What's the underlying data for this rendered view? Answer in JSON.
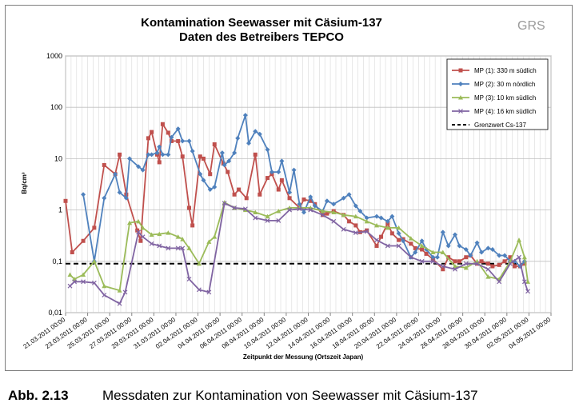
{
  "caption": {
    "number": "Abb. 2.13",
    "text": "Messdaten zur Kontamination von Seewasser mit Cäsium-137"
  },
  "logo": "GRS",
  "chart_data": {
    "type": "line",
    "title": "Kontamination Seewasser mit Cäsium-137",
    "subtitle": "Daten des Betreibers TEPCO",
    "xlabel": "Zeitpunkt der Messung (Ortszeit Japan)",
    "ylabel": "Bq/cm³",
    "yscale": "log",
    "ylim": [
      0.01,
      1000
    ],
    "yticks": [
      {
        "value": 1000,
        "label": "1000"
      },
      {
        "value": 100,
        "label": "100"
      },
      {
        "value": 10,
        "label": "10"
      },
      {
        "value": 1,
        "label": "1"
      },
      {
        "value": 0.1,
        "label": "0,1"
      },
      {
        "value": 0.01,
        "label": "0,01"
      }
    ],
    "xlim": [
      0,
      44
    ],
    "xticks": [
      {
        "value": 0,
        "label": "21.03.2011 00:00"
      },
      {
        "value": 2,
        "label": "23.03.2011 00:00"
      },
      {
        "value": 4,
        "label": "25.03.2011 00:00"
      },
      {
        "value": 6,
        "label": "27.03.2011 00:00"
      },
      {
        "value": 8,
        "label": "29.03.2011 00:00"
      },
      {
        "value": 10,
        "label": "31.03.2011 00:00"
      },
      {
        "value": 12,
        "label": "02.04.2011 00:00"
      },
      {
        "value": 14,
        "label": "04.04.2011 00:00"
      },
      {
        "value": 16,
        "label": "06.04.2011 00:00"
      },
      {
        "value": 18,
        "label": "08.04.2011 00:00"
      },
      {
        "value": 20,
        "label": "10.04.2011 00:00"
      },
      {
        "value": 22,
        "label": "12.04.2011 00:00"
      },
      {
        "value": 24,
        "label": "14.04.2011 00:00"
      },
      {
        "value": 26,
        "label": "16.04.2011 00:00"
      },
      {
        "value": 28,
        "label": "18.04.2011 00:00"
      },
      {
        "value": 30,
        "label": "20.04.2011 00:00"
      },
      {
        "value": 32,
        "label": "22.04.2011 00:00"
      },
      {
        "value": 34,
        "label": "24.04.2011 00:00"
      },
      {
        "value": 36,
        "label": "26.04.2011 00:00"
      },
      {
        "value": 38,
        "label": "28.04.2011 00:00"
      },
      {
        "value": 40,
        "label": "30.04.2011 00:00"
      },
      {
        "value": 42,
        "label": "02.05.2011 00:00"
      },
      {
        "value": 44,
        "label": "04.05.2011 00:00"
      }
    ],
    "legend_position": "top-right",
    "series": [
      {
        "name": "MP (1): 330 m südlich",
        "color": "#c0504d",
        "marker": "square",
        "points": [
          [
            0,
            1.5
          ],
          [
            0.6,
            0.15
          ],
          [
            1.6,
            0.25
          ],
          [
            2.6,
            0.45
          ],
          [
            3.5,
            7.5
          ],
          [
            4.5,
            5
          ],
          [
            4.9,
            12
          ],
          [
            5.5,
            2
          ],
          [
            6.5,
            0.4
          ],
          [
            6.8,
            0.25
          ],
          [
            7.5,
            25
          ],
          [
            7.8,
            33
          ],
          [
            8.3,
            12
          ],
          [
            8.5,
            8.5
          ],
          [
            8.8,
            47
          ],
          [
            9.3,
            32
          ],
          [
            9.6,
            22
          ],
          [
            10.2,
            22
          ],
          [
            10.6,
            11
          ],
          [
            11.2,
            1.1
          ],
          [
            11.5,
            0.5
          ],
          [
            12.2,
            11
          ],
          [
            12.5,
            10
          ],
          [
            13.1,
            5
          ],
          [
            13.5,
            19
          ],
          [
            14.3,
            8
          ],
          [
            14.7,
            5.5
          ],
          [
            15.3,
            2
          ],
          [
            15.7,
            2.5
          ],
          [
            16.4,
            1.7
          ],
          [
            17.2,
            12
          ],
          [
            17.6,
            2
          ],
          [
            18.3,
            4.2
          ],
          [
            18.7,
            5
          ],
          [
            19.3,
            2.5
          ],
          [
            19.6,
            3.8
          ],
          [
            20.3,
            1.7
          ],
          [
            21.2,
            1.1
          ],
          [
            21.6,
            1.6
          ],
          [
            22.2,
            1.5
          ],
          [
            22.6,
            1.3
          ],
          [
            23.3,
            0.8
          ],
          [
            23.7,
            0.85
          ],
          [
            24.3,
            0.95
          ],
          [
            25.2,
            0.8
          ],
          [
            25.7,
            0.6
          ],
          [
            26.3,
            0.5
          ],
          [
            26.7,
            0.37
          ],
          [
            27.3,
            0.4
          ],
          [
            28.2,
            0.2
          ],
          [
            28.6,
            0.3
          ],
          [
            29.2,
            0.55
          ],
          [
            29.6,
            0.35
          ],
          [
            30.2,
            0.26
          ],
          [
            30.6,
            0.27
          ],
          [
            31.3,
            0.22
          ],
          [
            31.7,
            0.18
          ],
          [
            32.3,
            0.17
          ],
          [
            32.7,
            0.14
          ],
          [
            33.3,
            0.11
          ],
          [
            34.2,
            0.07
          ],
          [
            34.7,
            0.12
          ],
          [
            35.3,
            0.1
          ],
          [
            35.7,
            0.1
          ],
          [
            36.3,
            0.12
          ],
          [
            36.7,
            0.13
          ],
          [
            37.3,
            0.09
          ],
          [
            37.7,
            0.1
          ],
          [
            38.3,
            0.09
          ],
          [
            38.7,
            0.08
          ],
          [
            39.3,
            0.085
          ],
          [
            39.8,
            0.1
          ],
          [
            40.3,
            0.12
          ],
          [
            40.7,
            0.08
          ],
          [
            41.2,
            0.08
          ],
          [
            41.6,
            0.09
          ]
        ]
      },
      {
        "name": "MP (2): 30 m nördlich",
        "color": "#4f81bd",
        "marker": "diamond",
        "points": [
          [
            1.6,
            2
          ],
          [
            2.6,
            0.1
          ],
          [
            3.5,
            1.7
          ],
          [
            4.5,
            5
          ],
          [
            4.9,
            2.2
          ],
          [
            5.5,
            1.7
          ],
          [
            5.8,
            10
          ],
          [
            6.6,
            7
          ],
          [
            7,
            6
          ],
          [
            7.5,
            12
          ],
          [
            7.8,
            12
          ],
          [
            8.3,
            13
          ],
          [
            8.5,
            17
          ],
          [
            8.8,
            12
          ],
          [
            9.3,
            12
          ],
          [
            9.6,
            26
          ],
          [
            10.2,
            38
          ],
          [
            10.6,
            22
          ],
          [
            11.2,
            22
          ],
          [
            11.5,
            14
          ],
          [
            12.2,
            5
          ],
          [
            12.5,
            3.8
          ],
          [
            13.1,
            2.5
          ],
          [
            13.5,
            2.8
          ],
          [
            14.2,
            13
          ],
          [
            14.4,
            7.5
          ],
          [
            14.8,
            9
          ],
          [
            15.3,
            13
          ],
          [
            15.6,
            25
          ],
          [
            16.3,
            70
          ],
          [
            16.6,
            20
          ],
          [
            17.2,
            34
          ],
          [
            17.6,
            30
          ],
          [
            18.3,
            15
          ],
          [
            18.7,
            5.5
          ],
          [
            19.3,
            5.5
          ],
          [
            19.6,
            9
          ],
          [
            20.3,
            2.2
          ],
          [
            20.7,
            6
          ],
          [
            21.2,
            1.3
          ],
          [
            21.6,
            0.9
          ],
          [
            22.2,
            1.8
          ],
          [
            22.6,
            1.2
          ],
          [
            23.3,
            0.95
          ],
          [
            23.7,
            1.5
          ],
          [
            24.3,
            1.3
          ],
          [
            25.2,
            1.7
          ],
          [
            25.7,
            2
          ],
          [
            26.3,
            1.2
          ],
          [
            26.7,
            0.95
          ],
          [
            27.3,
            0.7
          ],
          [
            28.2,
            0.75
          ],
          [
            28.6,
            0.7
          ],
          [
            29.2,
            0.6
          ],
          [
            29.6,
            0.75
          ],
          [
            30.2,
            0.35
          ],
          [
            30.6,
            0.25
          ],
          [
            31.3,
            0.12
          ],
          [
            31.7,
            0.15
          ],
          [
            32.3,
            0.25
          ],
          [
            32.7,
            0.17
          ],
          [
            33.3,
            0.12
          ],
          [
            33.7,
            0.12
          ],
          [
            34.2,
            0.37
          ],
          [
            34.7,
            0.2
          ],
          [
            35.3,
            0.33
          ],
          [
            35.7,
            0.2
          ],
          [
            36.3,
            0.17
          ],
          [
            36.7,
            0.13
          ],
          [
            37.3,
            0.23
          ],
          [
            37.7,
            0.15
          ],
          [
            38.3,
            0.18
          ],
          [
            38.7,
            0.17
          ],
          [
            39.3,
            0.13
          ],
          [
            39.8,
            0.13
          ],
          [
            40.3,
            0.1
          ],
          [
            40.7,
            0.1
          ],
          [
            41.2,
            0.08
          ],
          [
            41.6,
            0.1
          ]
        ]
      },
      {
        "name": "MP (3): 10 km südlich",
        "color": "#9bbb59",
        "marker": "triangle",
        "points": [
          [
            0.4,
            0.055
          ],
          [
            0.8,
            0.045
          ],
          [
            1.6,
            0.055
          ],
          [
            2.6,
            0.1
          ],
          [
            3.5,
            0.033
          ],
          [
            4.9,
            0.027
          ],
          [
            5.8,
            0.56
          ],
          [
            6.6,
            0.6
          ],
          [
            7,
            0.45
          ],
          [
            7.8,
            0.33
          ],
          [
            8.5,
            0.34
          ],
          [
            9.3,
            0.36
          ],
          [
            10.2,
            0.3
          ],
          [
            10.6,
            0.27
          ],
          [
            11.2,
            0.18
          ],
          [
            12.1,
            0.09
          ],
          [
            13,
            0.24
          ],
          [
            13.5,
            0.3
          ],
          [
            14.4,
            1.4
          ],
          [
            15.3,
            1.1
          ],
          [
            16.3,
            1
          ],
          [
            17.2,
            0.9
          ],
          [
            18.3,
            0.75
          ],
          [
            19.3,
            0.95
          ],
          [
            20.3,
            1.1
          ],
          [
            21.2,
            1.1
          ],
          [
            22.2,
            1.1
          ],
          [
            23.3,
            0.95
          ],
          [
            24.3,
            0.9
          ],
          [
            25.2,
            0.8
          ],
          [
            26.3,
            0.75
          ],
          [
            27.3,
            0.6
          ],
          [
            28.2,
            0.5
          ],
          [
            29.2,
            0.45
          ],
          [
            30.2,
            0.45
          ],
          [
            31.3,
            0.28
          ],
          [
            32.3,
            0.2
          ],
          [
            33.3,
            0.15
          ],
          [
            34.2,
            0.15
          ],
          [
            35.3,
            0.08
          ],
          [
            36.3,
            0.075
          ],
          [
            37.3,
            0.1
          ],
          [
            38.3,
            0.05
          ],
          [
            39.3,
            0.045
          ],
          [
            40.3,
            0.1
          ],
          [
            41.1,
            0.26
          ],
          [
            41.6,
            0.12
          ],
          [
            41.9,
            0.04
          ]
        ]
      },
      {
        "name": "MP (4): 16 km südlich",
        "color": "#8064a2",
        "marker": "x",
        "points": [
          [
            0.4,
            0.033
          ],
          [
            0.8,
            0.04
          ],
          [
            1.6,
            0.04
          ],
          [
            2.6,
            0.038
          ],
          [
            3.5,
            0.022
          ],
          [
            4.9,
            0.015
          ],
          [
            5.4,
            0.025
          ],
          [
            6.6,
            0.37
          ],
          [
            7,
            0.3
          ],
          [
            7.8,
            0.22
          ],
          [
            8.5,
            0.2
          ],
          [
            9.3,
            0.18
          ],
          [
            10.2,
            0.18
          ],
          [
            10.6,
            0.18
          ],
          [
            11.2,
            0.045
          ],
          [
            12.1,
            0.028
          ],
          [
            13,
            0.025
          ],
          [
            14.4,
            1.35
          ],
          [
            15.3,
            1.1
          ],
          [
            16.3,
            1.05
          ],
          [
            17.2,
            0.7
          ],
          [
            18.3,
            0.62
          ],
          [
            19.3,
            0.62
          ],
          [
            20.3,
            1
          ],
          [
            21.2,
            1.05
          ],
          [
            22.2,
            1
          ],
          [
            23.3,
            0.8
          ],
          [
            24.3,
            0.6
          ],
          [
            25.2,
            0.42
          ],
          [
            26.3,
            0.36
          ],
          [
            27.3,
            0.38
          ],
          [
            28.2,
            0.26
          ],
          [
            29.2,
            0.2
          ],
          [
            30.2,
            0.2
          ],
          [
            31.3,
            0.12
          ],
          [
            32.3,
            0.1
          ],
          [
            33.3,
            0.1
          ],
          [
            34.2,
            0.08
          ],
          [
            35.3,
            0.07
          ],
          [
            36.3,
            0.09
          ],
          [
            37.3,
            0.09
          ],
          [
            38.3,
            0.07
          ],
          [
            39.3,
            0.04
          ],
          [
            40.3,
            0.09
          ],
          [
            41.1,
            0.12
          ],
          [
            41.6,
            0.04
          ],
          [
            41.9,
            0.026
          ]
        ]
      }
    ],
    "reference_line": {
      "name": "Grenzwert Cs-137",
      "value": 0.09,
      "color": "#000000",
      "style": "dashed",
      "x_from": 0,
      "x_to": 42
    }
  }
}
